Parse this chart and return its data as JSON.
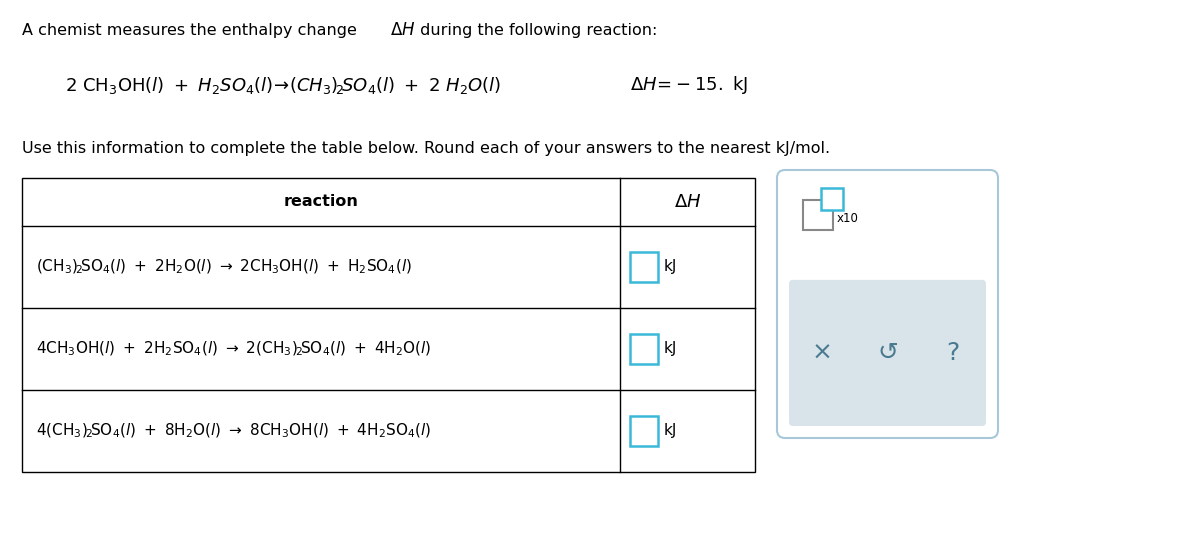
{
  "bg_color": "#ffffff",
  "text_color": "#000000",
  "table_line_color": "#000000",
  "cyan_color": "#3ab8d8",
  "sidebar_bg": "#dde8ee",
  "sidebar_border": "#a8c8d8",
  "title_line": "A chemist measures the enthalpy change ΔH during the following reaction:",
  "dh_italic_word": "ΔH",
  "reaction_eq": "2 CH₃OH(ℓ) + H₂SO₄(ℓ)→(CH₃)₂SO₄(ℓ) + 2 H₂O(ℓ)",
  "delta_h_val": "ΔH=−15. kJ",
  "instruction": "Use this information to complete the table below. Round each of your answers to the nearest kJ/mol.",
  "col_reaction": "reaction",
  "col_dh": "ΔH",
  "rows": [
    "(CH₃)₂SO₄(ℓ) + 2H₂O(ℓ) → 2CH₃OH(ℓ) + H₂SO₄(ℓ)",
    "4CH₃OH(ℓ) + 2H₂SO₄(ℓ) → 2(CH₃)₂SO₄(ℓ) + 4H₂O(ℓ)",
    "4(CH₃)₂SO₄(ℓ) + 8H₂O(ℓ) → 8CH₃OH(ℓ) + 4H₂SO₄(ℓ)"
  ],
  "kj": "kJ",
  "x10": "x10"
}
